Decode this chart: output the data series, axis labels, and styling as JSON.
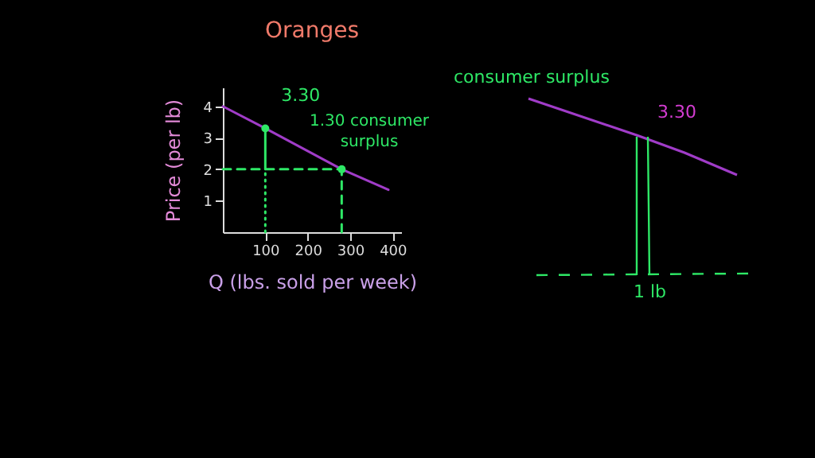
{
  "chart_data": {
    "type": "line",
    "title": "Oranges",
    "xlabel": "Q (lbs. sold per week)",
    "ylabel": "Price (per lb)",
    "xlim": [
      0,
      420
    ],
    "xticks": [
      100,
      200,
      300,
      400
    ],
    "ylim": [
      0,
      4.6
    ],
    "yticks": [
      1,
      2,
      3,
      4
    ],
    "series": [
      {
        "color": "#a03cc8",
        "x": [
          0,
          100,
          280,
          390
        ],
        "values": [
          4,
          3.3,
          2,
          1.35
        ]
      },
      {
        "color": "#2ee866",
        "x": [
          100,
          100
        ],
        "values": [
          2,
          3.3
        ]
      },
      {
        "color": "#2ee866",
        "line_style": "dashed",
        "x": [
          0,
          280
        ],
        "values": [
          2,
          2
        ]
      },
      {
        "color": "#2ee866",
        "line_style": "dashed",
        "x": [
          280,
          280
        ],
        "values": [
          0,
          2
        ]
      },
      {
        "color": "#2ee866",
        "line_style": "dotted",
        "x": [
          100,
          100
        ],
        "values": [
          0,
          2
        ]
      },
      {
        "type": "scatter",
        "marker": "circle",
        "color": "#2ee866",
        "x": [
          100,
          280
        ],
        "values": [
          3.3,
          2
        ]
      }
    ],
    "annotations": [
      {
        "text": "3.30",
        "x": 100,
        "y": 3.3
      },
      "1.30 consumer surplus",
      "consumer surplus",
      "3.30",
      "1 lb"
    ]
  }
}
